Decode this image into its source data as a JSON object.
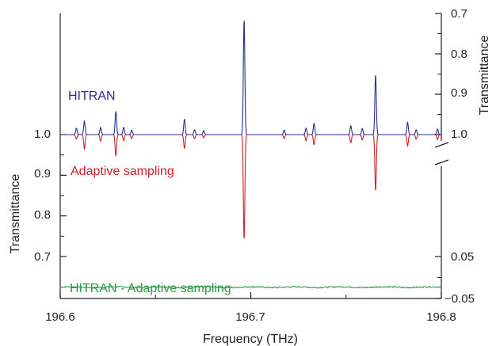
{
  "chart_data": {
    "type": "line",
    "x_axis": {
      "label": "Frequency (THz)",
      "range": [
        196.6,
        196.8
      ],
      "ticks": [
        196.6,
        196.7,
        196.8
      ],
      "tick_labels": [
        "196.6",
        "196.7",
        "196.8"
      ]
    },
    "left_axis": {
      "label": "Transmittance",
      "range": [
        0.65,
        1.0
      ],
      "ticks": [
        0.7,
        0.8,
        0.9,
        1.0
      ],
      "tick_labels": [
        "0.7",
        "0.8",
        "0.9",
        "1.0"
      ]
    },
    "right_axis_upper": {
      "label": "Transmittance",
      "inverted": true,
      "range": [
        1.0,
        0.7
      ],
      "ticks": [
        0.7,
        0.8,
        0.9,
        1.0
      ],
      "tick_labels": [
        "0.7",
        "0.8",
        "0.9",
        "1.0"
      ]
    },
    "right_axis_lower": {
      "range": [
        -0.05,
        0.05
      ],
      "ticks": [
        -0.05,
        0.05
      ],
      "tick_labels": [
        "−0.05",
        "0.05"
      ]
    },
    "axis_break": true,
    "grid": false,
    "series": [
      {
        "name": "HITRAN",
        "color": "#2b2e8c",
        "axis": "right_upper",
        "peaks": [
          [
            196.6085,
            0.984
          ],
          [
            196.6127,
            0.967
          ],
          [
            196.6212,
            0.982
          ],
          [
            196.6292,
            0.943
          ],
          [
            196.6333,
            0.982
          ],
          [
            196.6375,
            0.989
          ],
          [
            196.6652,
            0.962
          ],
          [
            196.6705,
            0.988
          ],
          [
            196.6753,
            0.99
          ],
          [
            196.6965,
            0.715
          ],
          [
            196.7175,
            0.989
          ],
          [
            196.729,
            0.984
          ],
          [
            196.7332,
            0.972
          ],
          [
            196.7525,
            0.978
          ],
          [
            196.7585,
            0.985
          ],
          [
            196.7655,
            0.852
          ],
          [
            196.7823,
            0.97
          ],
          [
            196.7868,
            0.988
          ],
          [
            196.798,
            0.986
          ]
        ]
      },
      {
        "name": "Adaptive sampling",
        "color": "#cc1f27",
        "axis": "left",
        "peaks": [
          [
            196.6085,
            0.989
          ],
          [
            196.6127,
            0.965
          ],
          [
            196.6212,
            0.984
          ],
          [
            196.6292,
            0.948
          ],
          [
            196.6333,
            0.985
          ],
          [
            196.6375,
            0.99
          ],
          [
            196.6652,
            0.966
          ],
          [
            196.6705,
            0.99
          ],
          [
            196.6753,
            0.992
          ],
          [
            196.6965,
            0.742
          ],
          [
            196.7175,
            0.99
          ],
          [
            196.729,
            0.985
          ],
          [
            196.7332,
            0.975
          ],
          [
            196.7525,
            0.98
          ],
          [
            196.7585,
            0.987
          ],
          [
            196.7655,
            0.862
          ],
          [
            196.7823,
            0.972
          ],
          [
            196.7868,
            0.989
          ],
          [
            196.798,
            0.988
          ]
        ]
      },
      {
        "name": "HITRAN - Adaptive sampling",
        "color": "#2e9a4a",
        "axis": "right_lower",
        "baseline": -0.023,
        "noise_amplitude": 0.0015
      }
    ]
  }
}
